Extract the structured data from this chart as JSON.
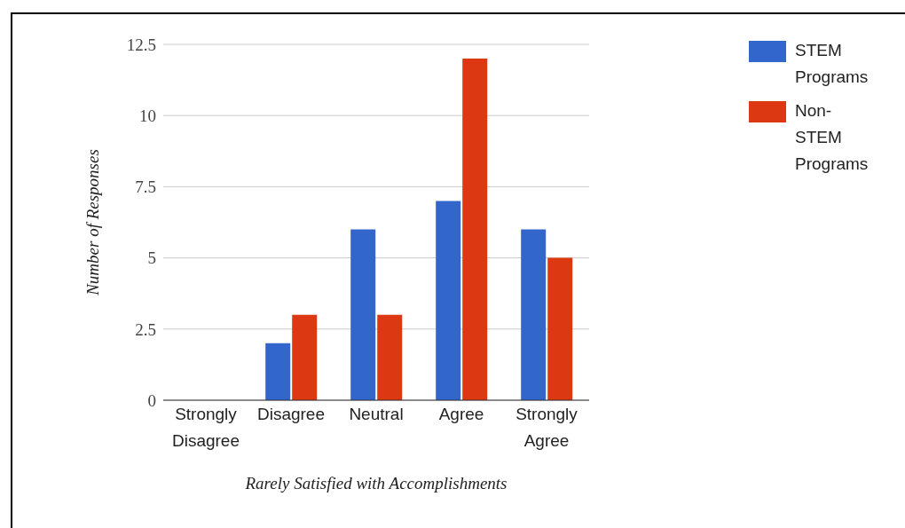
{
  "chart_data": {
    "type": "bar",
    "xlabel": "Rarely Satisfied with Accomplishments",
    "ylabel": "Number of Responses",
    "categories": [
      "Strongly Disagree",
      "Disagree",
      "Neutral",
      "Agree",
      "Strongly Agree"
    ],
    "series": [
      {
        "name": "STEM Programs",
        "color": "#3366cc",
        "values": [
          0,
          2,
          6,
          7,
          6
        ]
      },
      {
        "name": "Non-STEM Programs",
        "color": "#dc3912",
        "values": [
          0,
          3,
          3,
          12,
          5
        ]
      }
    ],
    "ylim": [
      0,
      12.5
    ],
    "yticks": [
      0,
      2.5,
      5,
      7.5,
      10,
      12.5
    ],
    "grid": "y",
    "legend": "top right"
  }
}
